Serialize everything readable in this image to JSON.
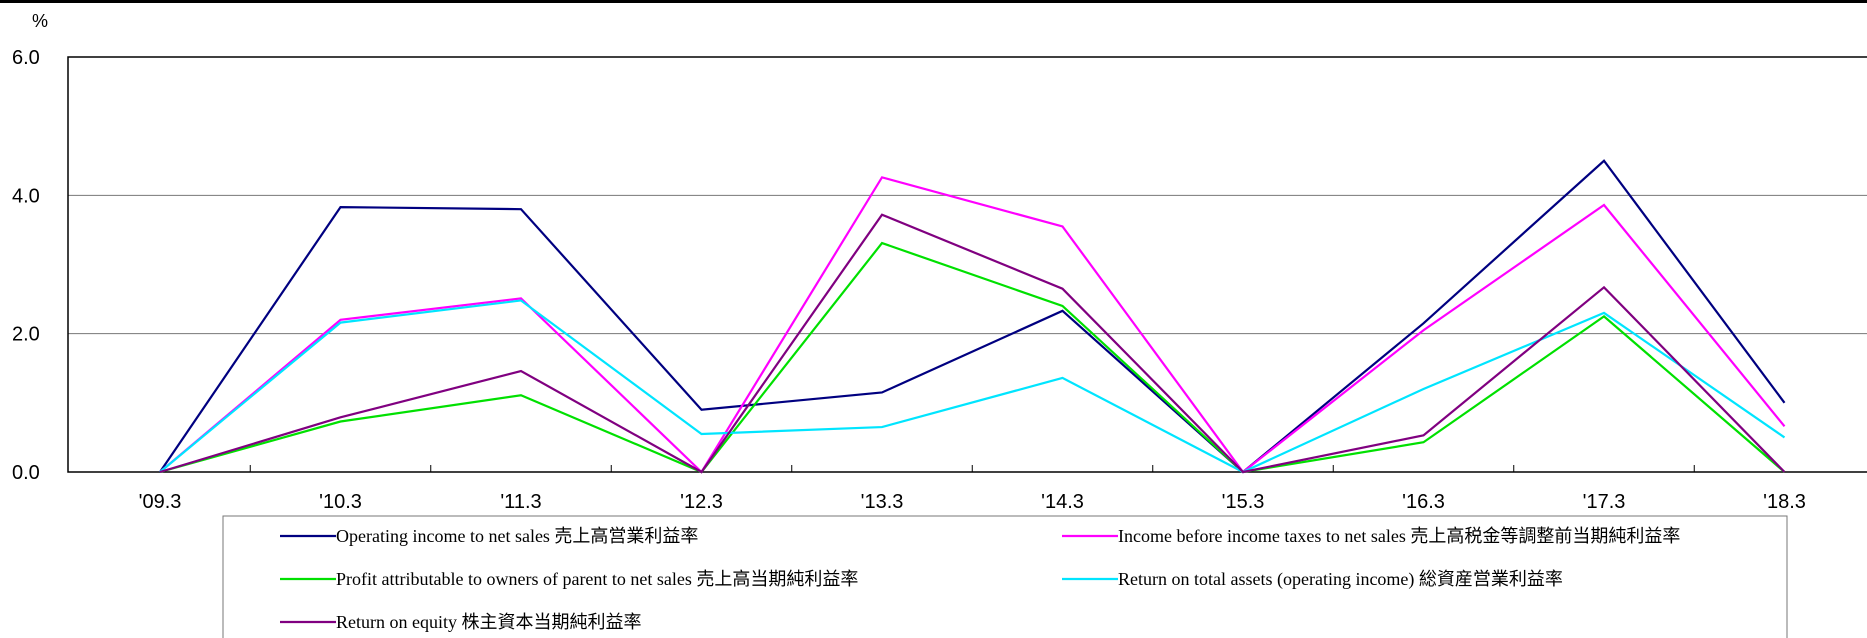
{
  "chart_data": {
    "type": "line",
    "title": "",
    "xlabel": "",
    "ylabel": "%",
    "ylim": [
      0,
      6
    ],
    "yticks": [
      "0.0",
      "2.0",
      "4.0",
      "6.0"
    ],
    "ytick_values": [
      0,
      2,
      4,
      6
    ],
    "categories": [
      "'09.3",
      "'10.3",
      "'11.3",
      "'12.3",
      "'13.3",
      "'14.3",
      "'15.3",
      "'16.3",
      "'17.3",
      "'18.3"
    ],
    "grid": "horizontal",
    "legend_placement": "bottom",
    "series": [
      {
        "name": "Operating income to net sales 売上高営業利益率",
        "color": "#000080",
        "values": [
          0,
          3.83,
          3.8,
          0.9,
          1.15,
          2.33,
          0,
          2.15,
          4.5,
          1.0
        ]
      },
      {
        "name": "Income before income taxes to net sales 売上高税金等調整前当期純利益率",
        "color": "#ff00ff",
        "values": [
          0,
          2.2,
          2.51,
          0,
          4.26,
          3.55,
          0,
          2.05,
          3.86,
          0.66
        ]
      },
      {
        "name": "Profit attributable to owners of parent to net sales 売上高当期純利益率",
        "color": "#00e000",
        "values": [
          0,
          0.73,
          1.11,
          0,
          3.31,
          2.4,
          0,
          0.43,
          2.25,
          0
        ]
      },
      {
        "name": "Return on total assets (operating income) 総資産営業利益率",
        "color": "#00e5ff",
        "values": [
          0,
          2.16,
          2.48,
          0.55,
          0.65,
          1.36,
          0,
          1.2,
          2.3,
          0.5
        ]
      },
      {
        "name": "Return on equity 株主資本当期純利益率",
        "color": "#800080",
        "values": [
          0,
          0.79,
          1.46,
          0,
          3.72,
          2.65,
          0,
          0.53,
          2.67,
          0
        ]
      }
    ]
  }
}
